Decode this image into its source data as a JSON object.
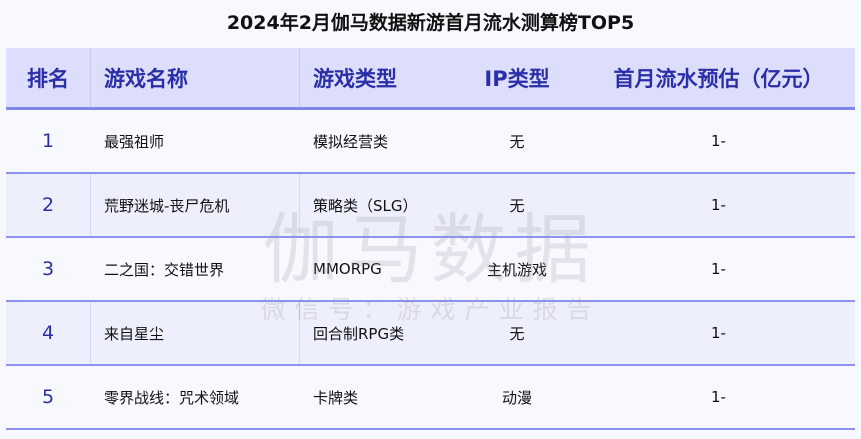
{
  "title": "2024年2月伽马数据新游首月流水测算榜TOP5",
  "headers": [
    "排名",
    "游戏名称",
    "游戏类型",
    "IP类型",
    "首月流水预估（亿元）"
  ],
  "rows": [
    {
      "rank": "1",
      "name": "最强祖师",
      "genre": "模拟经营类",
      "ip": "无",
      "revenue": "1-"
    },
    {
      "rank": "2",
      "name": "荒野迷城-丧尸危机",
      "genre": "策略类（SLG）",
      "ip": "无",
      "revenue": "1-"
    },
    {
      "rank": "3",
      "name": "二之国：交错世界",
      "genre": "MMORPG",
      "ip": "主机游戏",
      "revenue": "1-"
    },
    {
      "rank": "4",
      "name": "来自星尘",
      "genre": "回合制RPG类",
      "ip": "无",
      "revenue": "1-"
    },
    {
      "rank": "5",
      "name": "零界战线：咒术领域",
      "genre": "卡牌类",
      "ip": "动漫",
      "revenue": "1-"
    }
  ],
  "watermark": {
    "main": "伽马数据",
    "sub": "微信号：游戏产业报告"
  },
  "colors": {
    "header_bg": "#dcdefc",
    "header_text": "#2a2fa8",
    "row_shade": "#eeeffc",
    "divider": "#8c92f0"
  }
}
